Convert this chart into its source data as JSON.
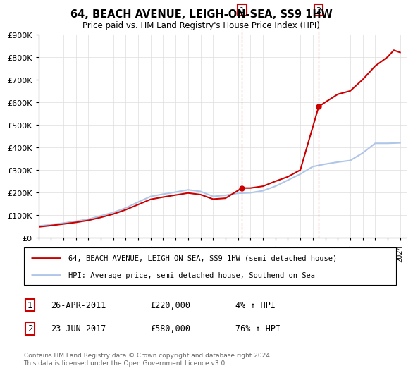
{
  "title": "64, BEACH AVENUE, LEIGH-ON-SEA, SS9 1HW",
  "subtitle": "Price paid vs. HM Land Registry's House Price Index (HPI)",
  "ylim": [
    0,
    900000
  ],
  "yticks": [
    0,
    100000,
    200000,
    300000,
    400000,
    500000,
    600000,
    700000,
    800000,
    900000
  ],
  "ytick_labels": [
    "£0",
    "£100K",
    "£200K",
    "£300K",
    "£400K",
    "£500K",
    "£600K",
    "£700K",
    "£800K",
    "£900K"
  ],
  "hpi_color": "#aec6e8",
  "price_color": "#cc0000",
  "transaction1": {
    "date": 2011.32,
    "price": 220000,
    "label": "1"
  },
  "transaction2": {
    "date": 2017.47,
    "price": 580000,
    "label": "2"
  },
  "legend1": "64, BEACH AVENUE, LEIGH-ON-SEA, SS9 1HW (semi-detached house)",
  "legend2": "HPI: Average price, semi-detached house, Southend-on-Sea",
  "annotation1_date": "26-APR-2011",
  "annotation1_price": "£220,000",
  "annotation1_hpi": "4% ↑ HPI",
  "annotation2_date": "23-JUN-2017",
  "annotation2_price": "£580,000",
  "annotation2_hpi": "76% ↑ HPI",
  "footer": "Contains HM Land Registry data © Crown copyright and database right 2024.\nThis data is licensed under the Open Government Licence v3.0.",
  "hpi_years": [
    1995,
    1996,
    1997,
    1998,
    1999,
    2000,
    2001,
    2002,
    2003,
    2004,
    2005,
    2006,
    2007,
    2008,
    2009,
    2010,
    2011,
    2012,
    2013,
    2014,
    2015,
    2016,
    2017,
    2018,
    2019,
    2020,
    2021,
    2022,
    2023,
    2024
  ],
  "hpi_values": [
    52000,
    58000,
    65000,
    73000,
    82000,
    97000,
    112000,
    132000,
    158000,
    183000,
    193000,
    202000,
    212000,
    205000,
    183000,
    188000,
    197000,
    199000,
    208000,
    228000,
    255000,
    282000,
    315000,
    326000,
    335000,
    342000,
    375000,
    418000,
    418000,
    420000
  ],
  "price_years": [
    1995,
    1996,
    1997,
    1998,
    1999,
    2000,
    2001,
    2002,
    2003,
    2004,
    2005,
    2006,
    2007,
    2008,
    2009,
    2010,
    2011.32,
    2012,
    2013,
    2014,
    2015,
    2016,
    2017.47,
    2018,
    2019,
    2020,
    2021,
    2022,
    2023,
    2023.5,
    2024.0
  ],
  "price_values": [
    48000,
    54000,
    61000,
    68000,
    77000,
    90000,
    105000,
    124000,
    147000,
    170000,
    180000,
    189000,
    198000,
    191000,
    171000,
    175000,
    220000,
    220000,
    228000,
    250000,
    270000,
    300000,
    580000,
    600000,
    635000,
    650000,
    700000,
    760000,
    800000,
    830000,
    820000
  ]
}
